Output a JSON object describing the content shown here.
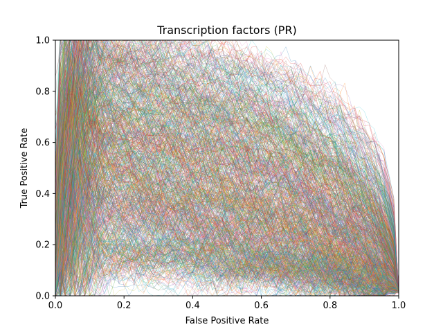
{
  "chart_data": {
    "type": "line",
    "title": "Transcription factors (PR)",
    "xlabel": "False Positive Rate",
    "ylabel": "True Positive Rate",
    "xlim": [
      0.0,
      1.0
    ],
    "ylim": [
      0.0,
      1.0
    ],
    "xticks": [
      "0.0",
      "0.2",
      "0.4",
      "0.6",
      "0.8",
      "1.0"
    ],
    "yticks": [
      "0.0",
      "0.2",
      "0.4",
      "0.6",
      "0.8",
      "1.0"
    ],
    "grid": false,
    "legend": "none",
    "line_width": 0.4,
    "line_opacity": 0.55,
    "series_colors": [
      "#1f77b4",
      "#ff7f0e",
      "#2ca02c",
      "#d62728",
      "#9467bd",
      "#8c564b",
      "#e377c2",
      "#7f7f7f",
      "#bcbd22",
      "#17becf"
    ],
    "series_family": {
      "description_of_shape": "many thin PR curves falling from near (0, y0) to about (1, 0.02); y0 between 0.1 and 1.0, bowing outward (concave) to linear to slightly convex",
      "count": 900,
      "endpoint_y_at_x1": 0.02
    }
  }
}
